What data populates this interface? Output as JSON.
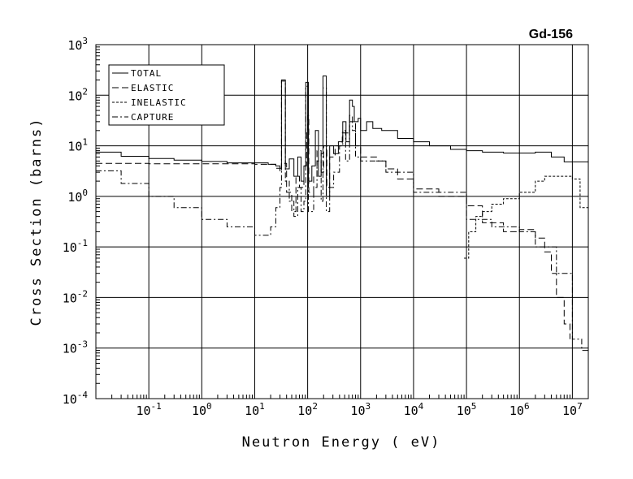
{
  "chart_data": {
    "type": "line",
    "title": "Gd-156",
    "xlabel": "Neutron Energy ( eV)",
    "ylabel": "Cross Section (barns)",
    "xscale": "log",
    "yscale": "log",
    "xlim": [
      0.01,
      20000000
    ],
    "ylim": [
      0.0001,
      1000
    ],
    "grid": true,
    "legend_position": "top-left",
    "x_ticks": [
      {
        "base": "10",
        "exp": "-1",
        "value": 0.1
      },
      {
        "base": "10",
        "exp": "0",
        "value": 1
      },
      {
        "base": "10",
        "exp": "1",
        "value": 10
      },
      {
        "base": "10",
        "exp": "2",
        "value": 100
      },
      {
        "base": "10",
        "exp": "3",
        "value": 1000
      },
      {
        "base": "10",
        "exp": "4",
        "value": 10000
      },
      {
        "base": "10",
        "exp": "5",
        "value": 100000
      },
      {
        "base": "10",
        "exp": "6",
        "value": 1000000
      },
      {
        "base": "10",
        "exp": "7",
        "value": 10000000
      }
    ],
    "y_ticks": [
      {
        "base": "10",
        "exp": "3",
        "value": 1000
      },
      {
        "base": "10",
        "exp": "2",
        "value": 100
      },
      {
        "base": "10",
        "exp": "1",
        "value": 10
      },
      {
        "base": "10",
        "exp": "0",
        "value": 1
      },
      {
        "base": "10",
        "exp": "-1",
        "value": 0.1
      },
      {
        "base": "10",
        "exp": "-2",
        "value": 0.01
      },
      {
        "base": "10",
        "exp": "-3",
        "value": 0.001
      },
      {
        "base": "10",
        "exp": "-4",
        "value": 0.0001
      }
    ],
    "series": [
      {
        "name": "TOTAL",
        "dash": "solid",
        "points": [
          [
            0.01,
            7.5
          ],
          [
            0.03,
            6.2
          ],
          [
            0.1,
            5.6
          ],
          [
            0.3,
            5.2
          ],
          [
            1,
            4.9
          ],
          [
            3,
            4.6
          ],
          [
            10,
            4.6
          ],
          [
            18,
            4.3
          ],
          [
            25,
            4.0
          ],
          [
            30,
            3.6
          ],
          [
            32,
            200
          ],
          [
            36,
            200
          ],
          [
            38,
            3.5
          ],
          [
            45,
            5.5
          ],
          [
            55,
            2.5
          ],
          [
            65,
            6
          ],
          [
            75,
            2.0
          ],
          [
            85,
            4
          ],
          [
            92,
            180
          ],
          [
            98,
            180
          ],
          [
            103,
            2.0
          ],
          [
            120,
            4
          ],
          [
            140,
            20
          ],
          [
            160,
            2.5
          ],
          [
            180,
            7
          ],
          [
            195,
            240
          ],
          [
            215,
            240
          ],
          [
            225,
            1.0
          ],
          [
            260,
            10
          ],
          [
            310,
            7
          ],
          [
            380,
            12
          ],
          [
            460,
            30
          ],
          [
            530,
            12
          ],
          [
            620,
            80
          ],
          [
            700,
            60
          ],
          [
            760,
            30
          ],
          [
            900,
            35
          ],
          [
            1000,
            20
          ],
          [
            1300,
            30
          ],
          [
            1700,
            22
          ],
          [
            2500,
            20
          ],
          [
            5000,
            14
          ],
          [
            10000,
            12
          ],
          [
            20000,
            10
          ],
          [
            50000,
            8.5
          ],
          [
            100000,
            8
          ],
          [
            200000,
            7.5
          ],
          [
            500000,
            7.2
          ],
          [
            1000000,
            7.2
          ],
          [
            2000000,
            7.5
          ],
          [
            4000000,
            6
          ],
          [
            7000000,
            4.8
          ],
          [
            10000000,
            4.8
          ],
          [
            20000000,
            5.8
          ]
        ]
      },
      {
        "name": "ELASTIC",
        "dash": "long-dash",
        "points": [
          [
            0.01,
            4.5
          ],
          [
            0.1,
            4.4
          ],
          [
            1,
            4.4
          ],
          [
            10,
            4.3
          ],
          [
            25,
            3.6
          ],
          [
            30,
            3.1
          ],
          [
            32,
            4.5
          ],
          [
            40,
            1.2
          ],
          [
            50,
            0.5
          ],
          [
            60,
            2.5
          ],
          [
            70,
            1.5
          ],
          [
            85,
            4
          ],
          [
            95,
            20
          ],
          [
            100,
            40
          ],
          [
            105,
            1.2
          ],
          [
            130,
            2.5
          ],
          [
            150,
            8
          ],
          [
            180,
            3
          ],
          [
            200,
            10
          ],
          [
            230,
            1.5
          ],
          [
            260,
            6
          ],
          [
            330,
            10
          ],
          [
            450,
            18
          ],
          [
            620,
            40
          ],
          [
            700,
            30
          ],
          [
            800,
            10
          ],
          [
            1000,
            6
          ],
          [
            2000,
            5
          ],
          [
            3000,
            3.5
          ],
          [
            5000,
            2.2
          ],
          [
            10000,
            1.4
          ],
          [
            30000,
            1.0
          ],
          [
            100000,
            0.65
          ],
          [
            200000,
            0.3
          ],
          [
            500000,
            0.2
          ],
          [
            1000000,
            0.22
          ],
          [
            2000000,
            0.15
          ],
          [
            3000000,
            0.08
          ],
          [
            4000000,
            0.03
          ],
          [
            5000000,
            0.01
          ],
          [
            7000000,
            0.003
          ],
          [
            9000000,
            0.0015
          ]
        ]
      },
      {
        "name": "INELASTIC",
        "dash": "short-dash",
        "points": [
          [
            90000,
            0.06
          ],
          [
            105000,
            0.06
          ],
          [
            110000,
            0.2
          ],
          [
            150000,
            0.4
          ],
          [
            200000,
            0.5
          ],
          [
            300000,
            0.7
          ],
          [
            500000,
            0.9
          ],
          [
            1000000,
            1.2
          ],
          [
            2000000,
            2
          ],
          [
            3000000,
            2.5
          ],
          [
            5000000,
            2.5
          ],
          [
            7000000,
            2.5
          ],
          [
            10000000,
            2.2
          ],
          [
            14000000,
            0.6
          ],
          [
            20000000,
            0.3
          ]
        ]
      },
      {
        "name": "CAPTURE",
        "dash": "dash-dot",
        "points": [
          [
            0.01,
            3.2
          ],
          [
            0.03,
            1.8
          ],
          [
            0.1,
            1.0
          ],
          [
            0.3,
            0.6
          ],
          [
            1,
            0.35
          ],
          [
            3,
            0.25
          ],
          [
            10,
            0.17
          ],
          [
            15,
            0.17
          ],
          [
            20,
            0.25
          ],
          [
            25,
            0.6
          ],
          [
            30,
            1.5
          ],
          [
            32,
            190
          ],
          [
            36,
            190
          ],
          [
            38,
            2.0
          ],
          [
            45,
            0.8
          ],
          [
            55,
            0.4
          ],
          [
            65,
            1.5
          ],
          [
            75,
            0.5
          ],
          [
            85,
            0.8
          ],
          [
            92,
            150
          ],
          [
            98,
            150
          ],
          [
            103,
            0.5
          ],
          [
            130,
            1.5
          ],
          [
            150,
            5
          ],
          [
            180,
            0.8
          ],
          [
            195,
            140
          ],
          [
            215,
            140
          ],
          [
            225,
            0.5
          ],
          [
            260,
            1.5
          ],
          [
            310,
            3
          ],
          [
            400,
            10
          ],
          [
            460,
            20
          ],
          [
            520,
            5
          ],
          [
            620,
            30
          ],
          [
            700,
            20
          ],
          [
            800,
            6
          ],
          [
            1000,
            5
          ],
          [
            3000,
            3
          ],
          [
            10000,
            1.2
          ],
          [
            100000,
            0.35
          ],
          [
            300000,
            0.25
          ],
          [
            1000000,
            0.2
          ],
          [
            2000000,
            0.1
          ],
          [
            5000000,
            0.03
          ],
          [
            10000000,
            0.0015
          ],
          [
            15000000,
            0.0009
          ],
          [
            20000000,
            0.001
          ]
        ]
      }
    ]
  }
}
